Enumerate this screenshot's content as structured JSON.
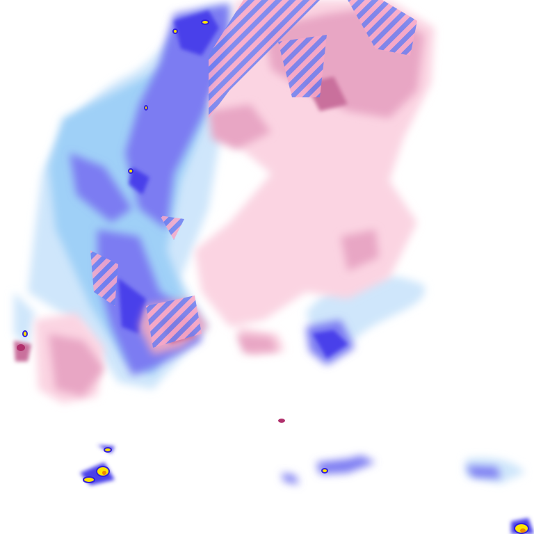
{
  "map": {
    "type": "precipitation-radar-tile",
    "colors": {
      "background": "#ffffff",
      "rain_light": "#cfe6fb",
      "rain_light_mid": "#9fd0f7",
      "rain_moderate": "#7b7cf2",
      "rain_heavy": "#4a3fea",
      "rain_very_heavy": "#3321d8",
      "rain_intense": "#ffe600",
      "rain_extreme": "#f08a00",
      "snow_light": "#fbd4e2",
      "snow_moderate": "#e8a6c4",
      "snow_heavy": "#c9709c",
      "snow_intense": "#b0306c",
      "mixed_hatch_a": "#f7a8c8",
      "mixed_hatch_b": "#6e7ff0"
    }
  }
}
